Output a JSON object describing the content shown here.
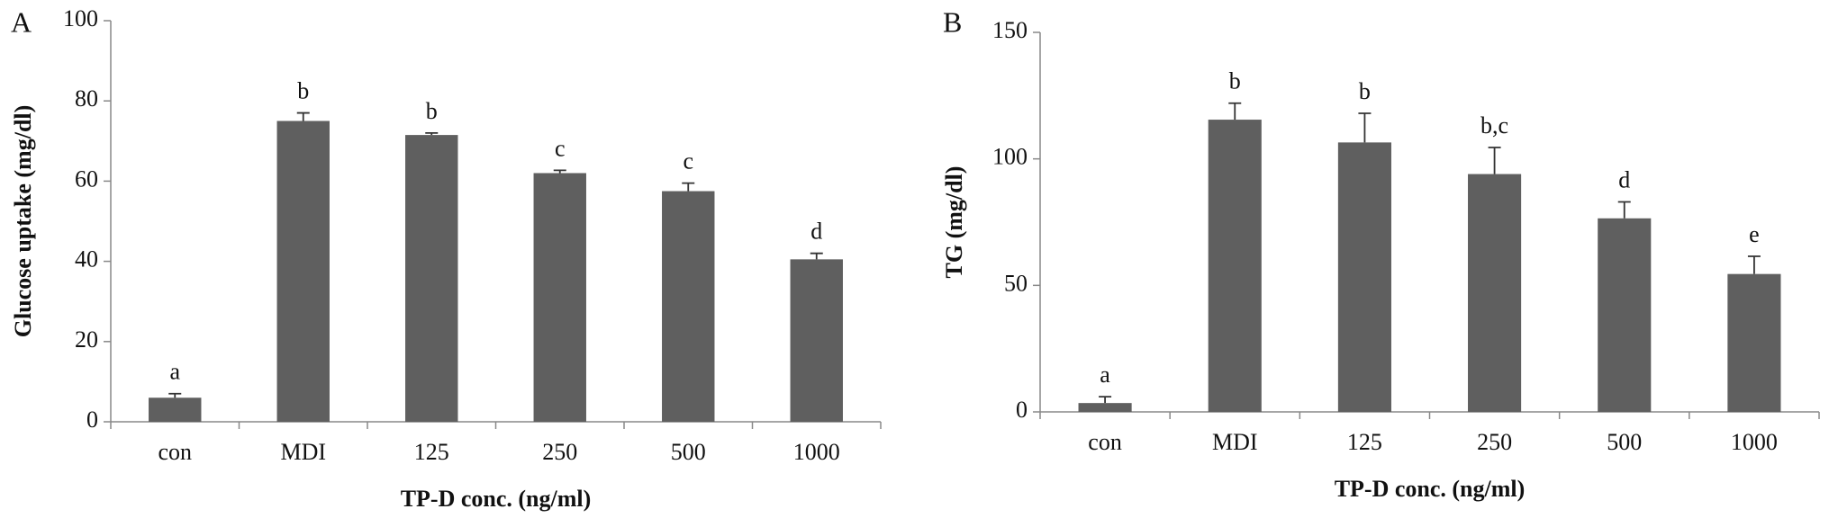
{
  "chart_data": [
    {
      "type": "bar",
      "panel_label": "A",
      "y_label": "Glucose uptake (mg/dl)",
      "x_label": "TP-D conc.  (ng/ml)",
      "categories": [
        "con",
        "MDI",
        "125",
        "250",
        "500",
        "1000"
      ],
      "values": [
        6,
        75,
        71.5,
        62,
        57.5,
        40.5
      ],
      "errors": [
        1,
        2,
        0.5,
        0.7,
        2,
        1.5
      ],
      "significance": [
        "a",
        "b",
        "b",
        "c",
        "c",
        "d"
      ],
      "color": "#5f5f5f",
      "ylim": [
        0,
        100
      ],
      "yticks": [
        0,
        20,
        40,
        60,
        80,
        100
      ],
      "grid": false
    },
    {
      "type": "bar",
      "panel_label": "B",
      "y_label": "TG (mg/dl)",
      "x_label": "TP-D conc.  (ng/ml)",
      "categories": [
        "con",
        "MDI",
        "125",
        "250",
        "500",
        "1000"
      ],
      "values": [
        3.5,
        115.5,
        106.5,
        94,
        76.5,
        54.5
      ],
      "errors": [
        2.5,
        6.5,
        11.5,
        10.5,
        6.5,
        7
      ],
      "significance": [
        "a",
        "b",
        "b",
        "b,c",
        "d",
        "e"
      ],
      "color": "#5f5f5f",
      "ylim": [
        0,
        150
      ],
      "yticks": [
        0,
        50,
        100,
        150
      ],
      "grid": false
    }
  ]
}
